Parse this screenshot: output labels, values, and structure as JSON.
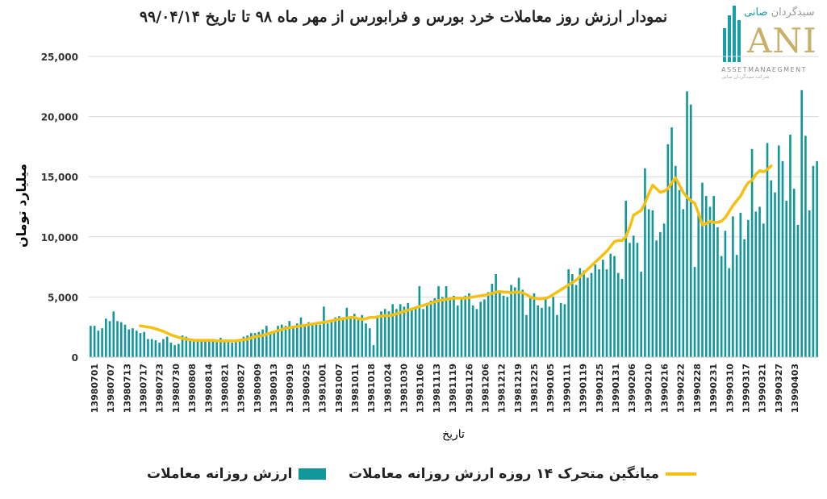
{
  "title": "نمودار ارزش روز معاملات خرد بورس و فرابورس از مهر ماه ۹۸ تا تاریخ ۹۹/۰۴/۱۴",
  "logo": {
    "brand_fa_prefix": "سبدگردان",
    "brand_fa_accent": "صانی",
    "brand_en": "ANI",
    "subtitle": "ASSETMANAEGMENT",
    "tagline": "شرکت سبدگردان صانی"
  },
  "colors": {
    "bars": "#11979a",
    "moving_average": "#f5c011",
    "grid": "#d9d9d9"
  },
  "chart_data": {
    "type": "bar",
    "title": "نمودار ارزش روز معاملات خرد بورس و فرابورس از مهر ماه ۹۸ تا تاریخ ۹۹/۰۴/۱۴",
    "xlabel": "تاریخ",
    "ylabel": "میلیارد تومان",
    "ylim": [
      0,
      25000
    ],
    "yticks": [
      0,
      5000,
      10000,
      15000,
      20000,
      25000
    ],
    "ytick_labels": [
      "0",
      "5,000",
      "10,000",
      "15,000",
      "20,000",
      "25,000"
    ],
    "xtick_labels": [
      "13980701",
      "13980707",
      "13980713",
      "13980717",
      "13980723",
      "13980730",
      "13980808",
      "13980814",
      "13980821",
      "13980827",
      "13980909",
      "13980913",
      "13980919",
      "13980925",
      "13981001",
      "13981007",
      "13981011",
      "13981018",
      "13981024",
      "13981030",
      "13981106",
      "13981113",
      "13981119",
      "13981126",
      "13981206",
      "13981212",
      "13981219",
      "13981225",
      "13990105",
      "13990111",
      "13990119",
      "13990125",
      "13990131",
      "13990206",
      "13990210",
      "13990216",
      "13990222",
      "13990228",
      "13990231",
      "13990310",
      "13990317",
      "13990321",
      "13990327",
      "13990403"
    ],
    "grid": true,
    "legend_position": "bottom",
    "series": [
      {
        "name": "ارزش روزانه معاملات",
        "type": "bar",
        "values": [
          2600,
          2600,
          2200,
          2400,
          3200,
          3000,
          3800,
          3000,
          2900,
          2700,
          2300,
          2400,
          2200,
          2000,
          2100,
          1500,
          1500,
          1400,
          1200,
          1500,
          1700,
          1200,
          1000,
          1100,
          1800,
          1700,
          1500,
          1400,
          1500,
          1500,
          1300,
          1500,
          1500,
          1400,
          1600,
          1400,
          1300,
          1200,
          1400,
          1500,
          1700,
          1800,
          2000,
          2000,
          2100,
          2300,
          2600,
          2000,
          2200,
          2600,
          2700,
          2600,
          3000,
          2600,
          2800,
          3300,
          2700,
          2900,
          2700,
          2800,
          2700,
          4200,
          2800,
          3000,
          3300,
          3400,
          3300,
          4100,
          3400,
          3600,
          3200,
          3500,
          2800,
          2400,
          1000,
          3400,
          3800,
          4000,
          3800,
          4400,
          4000,
          4400,
          4200,
          4500,
          4000,
          4100,
          5900,
          4000,
          4500,
          4700,
          4900,
          5900,
          5000,
          5900,
          4800,
          5100,
          4300,
          4800,
          5100,
          5300,
          4300,
          4000,
          4600,
          4800,
          5400,
          6100,
          6900,
          5500,
          5100,
          5000,
          6000,
          5800,
          6600,
          5600,
          3500,
          5100,
          5300,
          4300,
          4100,
          5000,
          4200,
          5000,
          3500,
          4500,
          4400,
          7300,
          6900,
          6000,
          7400,
          7200,
          6600,
          7000,
          7700,
          7300,
          8100,
          7300,
          8600,
          8400,
          7000,
          6500,
          13000,
          9500,
          10100,
          9500,
          7100,
          15700,
          12300,
          12200,
          9700,
          10400,
          11100,
          17700,
          19100,
          15900,
          13900,
          12300,
          22100,
          21000,
          7500,
          12100,
          14500,
          13400,
          12500,
          13400,
          10800,
          8400,
          10500,
          7400,
          11700,
          8500,
          12000,
          9800,
          11400,
          17300,
          12100,
          12500,
          11100,
          17800,
          14700,
          13700,
          17600,
          16300,
          13000,
          18500,
          14000,
          11000,
          22200,
          18400,
          12200,
          15900,
          16300
        ]
      },
      {
        "name": "میانگین متحرک ۱۴ روزه ارزش روزانه معاملات",
        "type": "line",
        "start_index": 13,
        "values": [
          2600,
          2550,
          2500,
          2450,
          2350,
          2250,
          2150,
          2000,
          1850,
          1750,
          1650,
          1550,
          1500,
          1450,
          1400,
          1400,
          1400,
          1400,
          1400,
          1400,
          1350,
          1350,
          1350,
          1350,
          1350,
          1350,
          1400,
          1450,
          1500,
          1600,
          1700,
          1750,
          1800,
          1900,
          2000,
          2100,
          2200,
          2300,
          2400,
          2450,
          2500,
          2550,
          2600,
          2650,
          2700,
          2750,
          2800,
          2850,
          2900,
          2950,
          3000,
          3100,
          3150,
          3200,
          3250,
          3300,
          3300,
          3200,
          3150,
          3200,
          3300,
          3300,
          3350,
          3400,
          3450,
          3450,
          3500,
          3600,
          3700,
          3800,
          3900,
          4000,
          4100,
          4200,
          4300,
          4400,
          4500,
          4600,
          4700,
          4750,
          4800,
          4850,
          4900,
          4900,
          4900,
          4900,
          4950,
          5000,
          5050,
          5100,
          5150,
          5200,
          5300,
          5400,
          5450,
          5400,
          5400,
          5350,
          5400,
          5400,
          5350,
          5200,
          5000,
          4900,
          4850,
          4850,
          4900,
          5000,
          5200,
          5400,
          5600,
          5800,
          6000,
          6200,
          6400,
          6700,
          7000,
          7300,
          7600,
          7900,
          8200,
          8500,
          8800,
          9200,
          9600,
          9700,
          9700,
          10000,
          10800,
          11800,
          12000,
          12200,
          12800,
          13600,
          14300,
          14000,
          13700,
          13800,
          14000,
          14500,
          14900,
          14300,
          13700,
          13300,
          13000,
          12800,
          12000,
          11000,
          11100,
          11300,
          11200,
          11200,
          11300,
          11600,
          12100,
          12600,
          13000,
          13400,
          14000,
          14500,
          14700,
          15200,
          15500,
          15400,
          15600,
          15900
        ]
      }
    ]
  },
  "legend": {
    "bars_label": "ارزش روزانه معاملات",
    "line_label": "میانگین متحرک ۱۴ روزه ارزش روزانه معاملات"
  }
}
